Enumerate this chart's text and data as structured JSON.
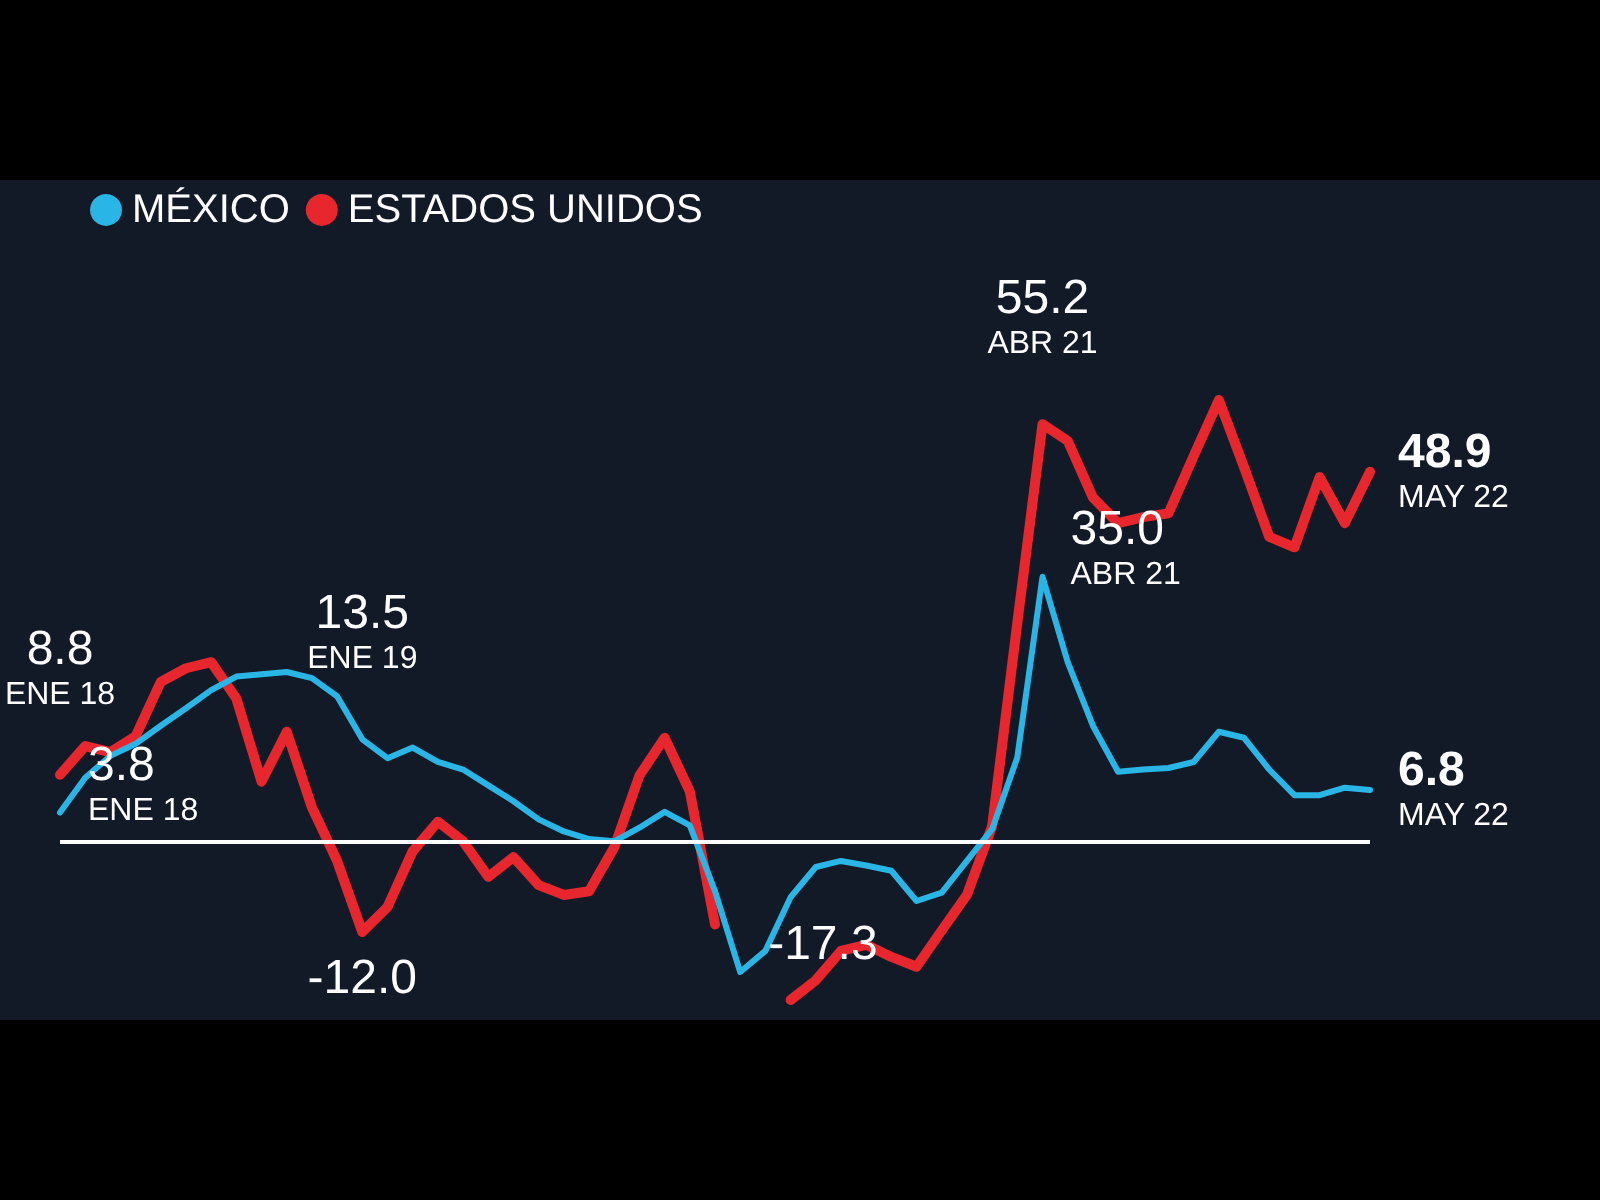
{
  "chart_data": {
    "type": "line",
    "categories": [
      null,
      null,
      null,
      null,
      null,
      null,
      null,
      null,
      null,
      null,
      null,
      null,
      null,
      null,
      null,
      null,
      null,
      null,
      null,
      null,
      null,
      null,
      null,
      null,
      null,
      null,
      null,
      null,
      null,
      null,
      null,
      null,
      null,
      null,
      null,
      null,
      null,
      null,
      null,
      null,
      null,
      null,
      null,
      null,
      null,
      null,
      null,
      null,
      null,
      null,
      null,
      null,
      null
    ],
    "series": [
      {
        "name": "MÉXICO",
        "color": "#29b6e6",
        "values": [
          3.8,
          8.4,
          11.3,
          12.9,
          15.3,
          17.6,
          20,
          21.8,
          22.1,
          22.4,
          21.6,
          19.2,
          13.5,
          11,
          12.4,
          10.5,
          9.5,
          7.4,
          5.3,
          2.9,
          1.3,
          0.3,
          0,
          1.8,
          3.9,
          2.1,
          -6.6,
          -17.3,
          -14.5,
          -7.4,
          -3.4,
          -2.6,
          -3.2,
          -3.9,
          -7.9,
          -6.8,
          -2.6,
          1.6,
          11.1,
          35.0,
          23.7,
          15.3,
          9.2,
          9.5,
          9.7,
          10.5,
          14.5,
          13.7,
          9.5,
          6.1,
          6.1,
          7.1,
          6.8
        ],
        "value_labels": [
          "3.8\nENE 18",
          null,
          null,
          null,
          null,
          null,
          null,
          null,
          null,
          null,
          null,
          null,
          "13.5\nENE 19",
          null,
          null,
          null,
          null,
          null,
          null,
          null,
          null,
          null,
          null,
          null,
          null,
          null,
          null,
          "-17.3",
          null,
          null,
          null,
          null,
          null,
          null,
          null,
          null,
          null,
          null,
          null,
          "35.0\nABR 21",
          null,
          null,
          null,
          null,
          null,
          null,
          null,
          null,
          null,
          null,
          null,
          null,
          "6.8\nMAY 22"
        ]
      },
      {
        "name": "ESTADOS UNIDOS",
        "color": "#e8262d",
        "values": [
          8.8,
          12.6,
          11.8,
          13.9,
          21.1,
          22.9,
          23.7,
          18.9,
          7.9,
          14.5,
          4.5,
          -2.6,
          -12.0,
          -8.7,
          -1.3,
          2.6,
          0,
          -4.7,
          -2.1,
          -5.8,
          -7.1,
          -6.6,
          -0.8,
          8.7,
          13.7,
          6.6,
          -11,
          null,
          null,
          -21,
          -18.4,
          -14.5,
          -13.7,
          -15.3,
          -16.6,
          -11.8,
          -7.1,
          2,
          28.9,
          55.2,
          53.0,
          45.5,
          42.1,
          42.9,
          43.4,
          51,
          58.4,
          49.5,
          40.3,
          38.9,
          48.2,
          42.1,
          48.9
        ],
        "value_labels": [
          "8.8\nENE 18",
          null,
          null,
          null,
          null,
          null,
          null,
          null,
          null,
          null,
          null,
          null,
          "-12.0",
          null,
          null,
          null,
          null,
          null,
          null,
          null,
          null,
          null,
          null,
          null,
          null,
          null,
          null,
          null,
          null,
          null,
          null,
          null,
          null,
          null,
          null,
          null,
          null,
          null,
          null,
          "55.2\nABR 21",
          null,
          null,
          null,
          null,
          null,
          null,
          null,
          null,
          null,
          null,
          null,
          null,
          "48.9\nMAY 22"
        ]
      }
    ],
    "tick_labels": false,
    "legend": "top left",
    "ref_lines": [
      {
        "axis": "y",
        "value": 0,
        "color": "#ffffff"
      }
    ]
  }
}
